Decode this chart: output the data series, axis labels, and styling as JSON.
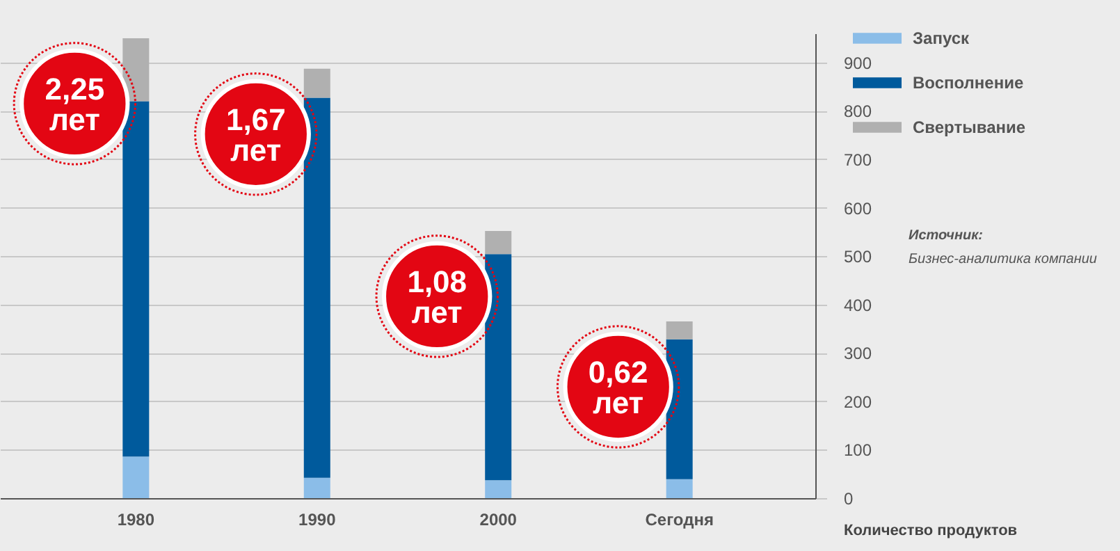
{
  "chart_data": {
    "type": "bar",
    "stacked": true,
    "categories": [
      "1980",
      "1990",
      "2000",
      "Сегодня"
    ],
    "series": [
      {
        "name": "Запуск",
        "color": "#8bbde8",
        "values": [
          86,
          42,
          37,
          39
        ]
      },
      {
        "name": "Восполнение",
        "color": "#005a9c",
        "values": [
          734,
          785,
          467,
          289
        ]
      },
      {
        "name": "Свертывание",
        "color": "#b0b0b0",
        "values": [
          130,
          60,
          48,
          37
        ]
      }
    ],
    "ylabel": "Количество продуктов",
    "ylim": [
      0,
      960
    ],
    "yticks": [
      0,
      100,
      200,
      300,
      400,
      500,
      600,
      700,
      800,
      900
    ],
    "grid": "y",
    "legend": "top right",
    "annotations": [
      "2,25 лет",
      "1,67 лет",
      "1,08 лет",
      "0,62 лет",
      "Источник:",
      "Бизнес-аналитика компании"
    ]
  }
}
